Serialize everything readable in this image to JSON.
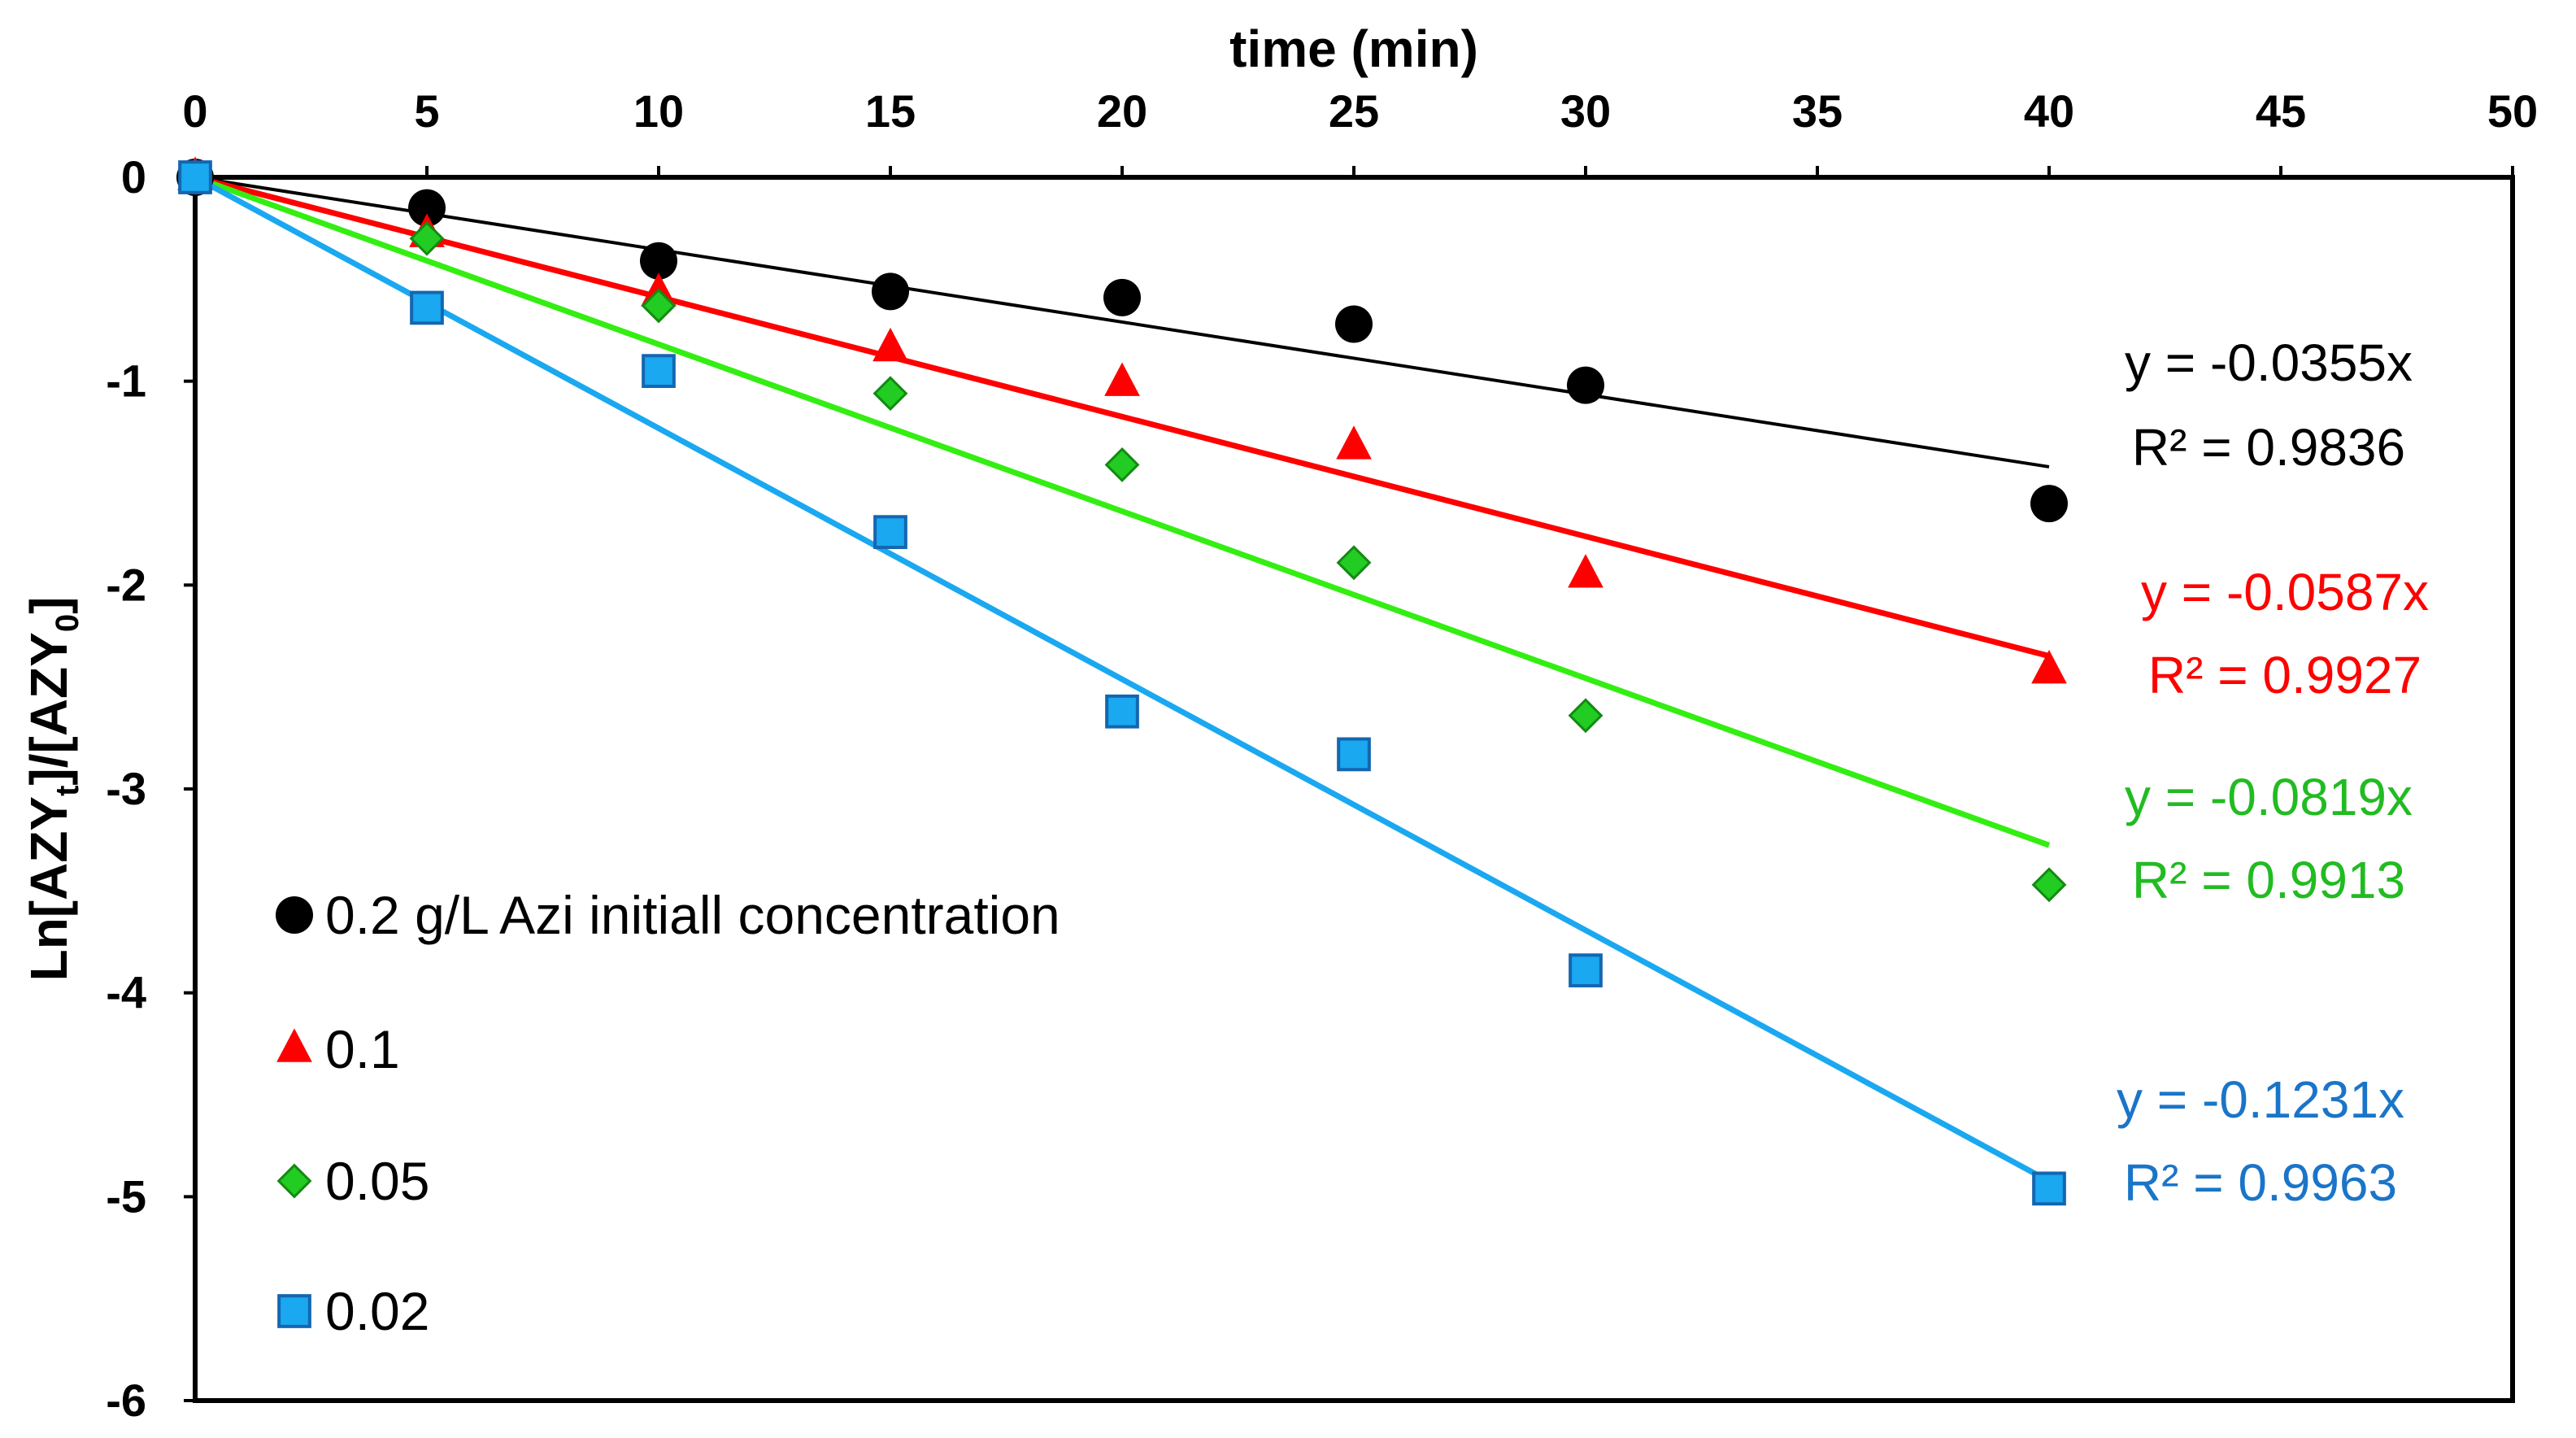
{
  "chart_data": {
    "type": "scatter",
    "xlabel": "time (min)",
    "ylabel": {
      "prefix": "Ln[AZY",
      "sub1": "t",
      "middle": "]/[AZY",
      "sub2": "0",
      "suffix": "]"
    },
    "xlim": [
      0,
      50
    ],
    "ylim": [
      -6,
      0
    ],
    "x_ticks": [
      "0",
      "5",
      "10",
      "15",
      "20",
      "25",
      "30",
      "35",
      "40",
      "45",
      "50"
    ],
    "y_ticks": [
      "0",
      "-1",
      "-2",
      "-3",
      "-4",
      "-5",
      "-6"
    ],
    "x_axis_position": "top",
    "grid": false,
    "legend_position": "lower-left",
    "series": [
      {
        "name": "0.2 g/L Azi initiall concentration",
        "marker": "circle",
        "color": "#000000",
        "x": [
          0,
          5,
          10,
          15,
          20,
          25,
          30,
          40
        ],
        "y": [
          0,
          -0.15,
          -0.41,
          -0.56,
          -0.59,
          -0.72,
          -1.02,
          -1.6
        ],
        "trendline": {
          "slope": -0.0355,
          "equation": "y = -0.0355x",
          "r2": "R² = 0.9836"
        }
      },
      {
        "name": "0.1",
        "marker": "triangle",
        "color": "#ff0000",
        "x": [
          0,
          5,
          10,
          15,
          20,
          25,
          30,
          40
        ],
        "y": [
          0,
          -0.28,
          -0.57,
          -0.84,
          -1.01,
          -1.32,
          -1.95,
          -2.42
        ],
        "trendline": {
          "slope": -0.0587,
          "equation": "y = -0.0587x",
          "r2": "R² = 0.9927"
        }
      },
      {
        "name": "0.05",
        "marker": "diamond",
        "color": "#22cc22",
        "line_color": "#33ee11",
        "x": [
          0,
          5,
          10,
          15,
          20,
          25,
          30,
          40
        ],
        "y": [
          0,
          -0.3,
          -0.63,
          -1.06,
          -1.41,
          -1.89,
          -2.64,
          -3.47
        ],
        "trendline": {
          "slope": -0.0819,
          "equation": "y = -0.0819x",
          "r2": "R² = 0.9913"
        }
      },
      {
        "name": "0.02",
        "marker": "square",
        "color": "#1aa8f0",
        "x": [
          0,
          5,
          10,
          15,
          20,
          25,
          30,
          40
        ],
        "y": [
          0,
          -0.64,
          -0.95,
          -1.74,
          -2.62,
          -2.83,
          -3.89,
          -4.96
        ],
        "trendline": {
          "slope": -0.1231,
          "equation": "y = -0.1231x",
          "r2": "R² = 0.9963"
        }
      }
    ]
  },
  "colors": {
    "eq_black": "#000000",
    "eq_red": "#ff0000",
    "eq_green": "#22bb22",
    "eq_blue": "#1a75c8"
  }
}
